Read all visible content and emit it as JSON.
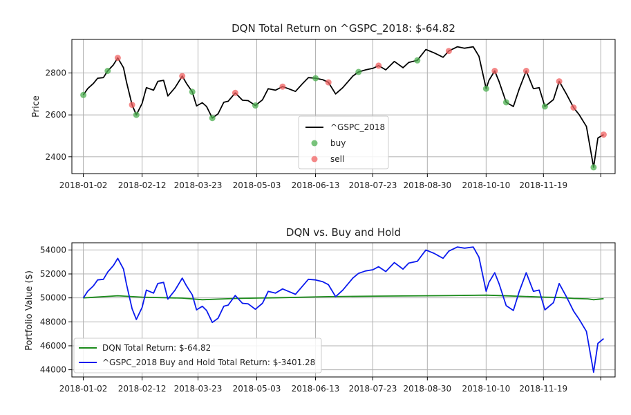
{
  "chart_data": [
    {
      "type": "line",
      "title": "DQN Total Return on ^GSPC_2018: $-64.82",
      "xlabel": "",
      "ylabel": "Price",
      "x_ticks": [
        "2018-01-02",
        "2018-02-12",
        "2018-03-23",
        "2018-05-03",
        "2018-06-13",
        "2018-07-23",
        "2018-08-30",
        "2018-10-10",
        "2018-11-19"
      ],
      "x_range": [
        "2017-12-25",
        "2019-01-08"
      ],
      "y_ticks": [
        2400,
        2600,
        2800
      ],
      "ylim": [
        2320,
        2960
      ],
      "grid": true,
      "legend_position": "lower-center",
      "series": [
        {
          "name": "^GSPC_2018",
          "color": "#000000",
          "x": [
            "2018-01-02",
            "2018-01-05",
            "2018-01-09",
            "2018-01-12",
            "2018-01-16",
            "2018-01-19",
            "2018-01-23",
            "2018-01-26",
            "2018-01-30",
            "2018-02-01",
            "2018-02-05",
            "2018-02-08",
            "2018-02-12",
            "2018-02-15",
            "2018-02-20",
            "2018-02-23",
            "2018-02-27",
            "2018-03-02",
            "2018-03-07",
            "2018-03-12",
            "2018-03-15",
            "2018-03-19",
            "2018-03-22",
            "2018-03-26",
            "2018-03-29",
            "2018-04-02",
            "2018-04-06",
            "2018-04-10",
            "2018-04-13",
            "2018-04-18",
            "2018-04-23",
            "2018-04-27",
            "2018-05-02",
            "2018-05-07",
            "2018-05-11",
            "2018-05-16",
            "2018-05-21",
            "2018-05-25",
            "2018-05-30",
            "2018-06-04",
            "2018-06-08",
            "2018-06-13",
            "2018-06-18",
            "2018-06-22",
            "2018-06-27",
            "2018-07-02",
            "2018-07-09",
            "2018-07-13",
            "2018-07-18",
            "2018-07-23",
            "2018-07-27",
            "2018-08-01",
            "2018-08-07",
            "2018-08-13",
            "2018-08-17",
            "2018-08-23",
            "2018-08-29",
            "2018-09-04",
            "2018-09-10",
            "2018-09-14",
            "2018-09-20",
            "2018-09-25",
            "2018-10-01",
            "2018-10-05",
            "2018-10-10",
            "2018-10-12",
            "2018-10-16",
            "2018-10-19",
            "2018-10-24",
            "2018-10-29",
            "2018-11-02",
            "2018-11-07",
            "2018-11-12",
            "2018-11-16",
            "2018-11-20",
            "2018-11-26",
            "2018-11-30",
            "2018-12-05",
            "2018-12-10",
            "2018-12-14",
            "2018-12-19",
            "2018-12-24",
            "2018-12-27",
            "2018-12-31"
          ],
          "y": [
            2695,
            2725,
            2750,
            2775,
            2778,
            2810,
            2839,
            2872,
            2825,
            2760,
            2648,
            2600,
            2655,
            2730,
            2718,
            2760,
            2765,
            2690,
            2730,
            2785,
            2750,
            2710,
            2643,
            2658,
            2640,
            2585,
            2605,
            2660,
            2665,
            2705,
            2670,
            2668,
            2645,
            2672,
            2725,
            2718,
            2735,
            2725,
            2712,
            2750,
            2778,
            2775,
            2768,
            2755,
            2700,
            2730,
            2785,
            2805,
            2815,
            2822,
            2835,
            2815,
            2855,
            2825,
            2850,
            2860,
            2912,
            2895,
            2875,
            2905,
            2925,
            2918,
            2925,
            2880,
            2725,
            2765,
            2810,
            2760,
            2660,
            2640,
            2722,
            2810,
            2725,
            2730,
            2640,
            2673,
            2760,
            2700,
            2635,
            2600,
            2545,
            2350,
            2490,
            2506
          ]
        }
      ],
      "markers": [
        {
          "name": "buy",
          "color": "#4caf50",
          "x": [
            "2018-01-02",
            "2018-01-19",
            "2018-02-08",
            "2018-03-19",
            "2018-04-02",
            "2018-05-02",
            "2018-06-13",
            "2018-07-13",
            "2018-08-23",
            "2018-10-10",
            "2018-10-24",
            "2018-11-20",
            "2018-12-24"
          ],
          "y": [
            2695,
            2810,
            2600,
            2710,
            2585,
            2645,
            2775,
            2805,
            2860,
            2725,
            2660,
            2640,
            2350
          ]
        },
        {
          "name": "sell",
          "color": "#f06060",
          "x": [
            "2018-01-26",
            "2018-02-05",
            "2018-03-12",
            "2018-04-18",
            "2018-05-21",
            "2018-06-22",
            "2018-07-27",
            "2018-09-14",
            "2018-10-16",
            "2018-11-07",
            "2018-11-30",
            "2018-12-10",
            "2018-12-31"
          ],
          "y": [
            2872,
            2648,
            2785,
            2705,
            2735,
            2755,
            2835,
            2905,
            2810,
            2810,
            2760,
            2635,
            2506
          ]
        }
      ]
    },
    {
      "type": "line",
      "title": "DQN vs. Buy and Hold",
      "xlabel": "",
      "ylabel": "Portfolio Value ($)",
      "x_ticks": [
        "2018-01-02",
        "2018-02-12",
        "2018-03-23",
        "2018-05-03",
        "2018-06-13",
        "2018-07-23",
        "2018-08-30",
        "2018-10-10",
        "2018-11-19"
      ],
      "x_range": [
        "2017-12-25",
        "2019-01-08"
      ],
      "y_ticks": [
        44000,
        46000,
        48000,
        50000,
        52000,
        54000
      ],
      "ylim": [
        43400,
        54600
      ],
      "grid": true,
      "legend_position": "lower-left",
      "series": [
        {
          "name": "DQN Total Return: $-64.82",
          "color": "#1a8a1a",
          "x": [
            "2018-01-02",
            "2018-01-26",
            "2018-02-12",
            "2018-03-12",
            "2018-03-26",
            "2018-04-18",
            "2018-05-21",
            "2018-06-22",
            "2018-07-27",
            "2018-09-14",
            "2018-10-10",
            "2018-10-24",
            "2018-11-20",
            "2018-11-30",
            "2018-12-10",
            "2018-12-20",
            "2018-12-24",
            "2018-12-31"
          ],
          "y": [
            50000,
            50180,
            50060,
            49980,
            49850,
            49950,
            50020,
            50100,
            50150,
            50190,
            50230,
            50170,
            50060,
            50040,
            49950,
            49920,
            49850,
            49935
          ]
        },
        {
          "name": "^GSPC_2018 Buy and Hold Total Return: $-3401.28",
          "color": "#0a1aee",
          "x": [
            "2018-01-02",
            "2018-01-05",
            "2018-01-09",
            "2018-01-12",
            "2018-01-16",
            "2018-01-19",
            "2018-01-23",
            "2018-01-26",
            "2018-01-30",
            "2018-02-01",
            "2018-02-05",
            "2018-02-08",
            "2018-02-12",
            "2018-02-15",
            "2018-02-20",
            "2018-02-23",
            "2018-02-27",
            "2018-03-02",
            "2018-03-07",
            "2018-03-12",
            "2018-03-15",
            "2018-03-19",
            "2018-03-22",
            "2018-03-26",
            "2018-03-29",
            "2018-04-02",
            "2018-04-06",
            "2018-04-10",
            "2018-04-13",
            "2018-04-18",
            "2018-04-23",
            "2018-04-27",
            "2018-05-02",
            "2018-05-07",
            "2018-05-11",
            "2018-05-16",
            "2018-05-21",
            "2018-05-25",
            "2018-05-30",
            "2018-06-04",
            "2018-06-08",
            "2018-06-13",
            "2018-06-18",
            "2018-06-22",
            "2018-06-27",
            "2018-07-02",
            "2018-07-09",
            "2018-07-13",
            "2018-07-18",
            "2018-07-23",
            "2018-07-27",
            "2018-08-01",
            "2018-08-07",
            "2018-08-13",
            "2018-08-17",
            "2018-08-23",
            "2018-08-29",
            "2018-09-04",
            "2018-09-10",
            "2018-09-14",
            "2018-09-20",
            "2018-09-25",
            "2018-10-01",
            "2018-10-05",
            "2018-10-10",
            "2018-10-12",
            "2018-10-16",
            "2018-10-19",
            "2018-10-24",
            "2018-10-29",
            "2018-11-02",
            "2018-11-07",
            "2018-11-12",
            "2018-11-16",
            "2018-11-20",
            "2018-11-26",
            "2018-11-30",
            "2018-12-05",
            "2018-12-10",
            "2018-12-14",
            "2018-12-19",
            "2018-12-24",
            "2018-12-27",
            "2018-12-31"
          ],
          "y": [
            50000,
            50550,
            51000,
            51500,
            51550,
            52150,
            52700,
            53300,
            52400,
            51200,
            49100,
            48200,
            49200,
            50650,
            50400,
            51200,
            51300,
            49900,
            50650,
            51650,
            51000,
            50250,
            49000,
            49300,
            48950,
            47950,
            48300,
            49300,
            49400,
            50200,
            49550,
            49500,
            49050,
            49550,
            50550,
            50400,
            50750,
            50550,
            50300,
            51000,
            51550,
            51500,
            51350,
            51100,
            50100,
            50650,
            51650,
            52050,
            52250,
            52350,
            52600,
            52200,
            52950,
            52400,
            52900,
            53050,
            54000,
            53700,
            53300,
            53900,
            54250,
            54150,
            54250,
            53400,
            50550,
            51300,
            52100,
            51200,
            49350,
            48950,
            50500,
            52100,
            50550,
            50650,
            49000,
            49600,
            51200,
            50100,
            48900,
            48200,
            47200,
            43800,
            46200,
            46600
          ]
        }
      ]
    }
  ]
}
